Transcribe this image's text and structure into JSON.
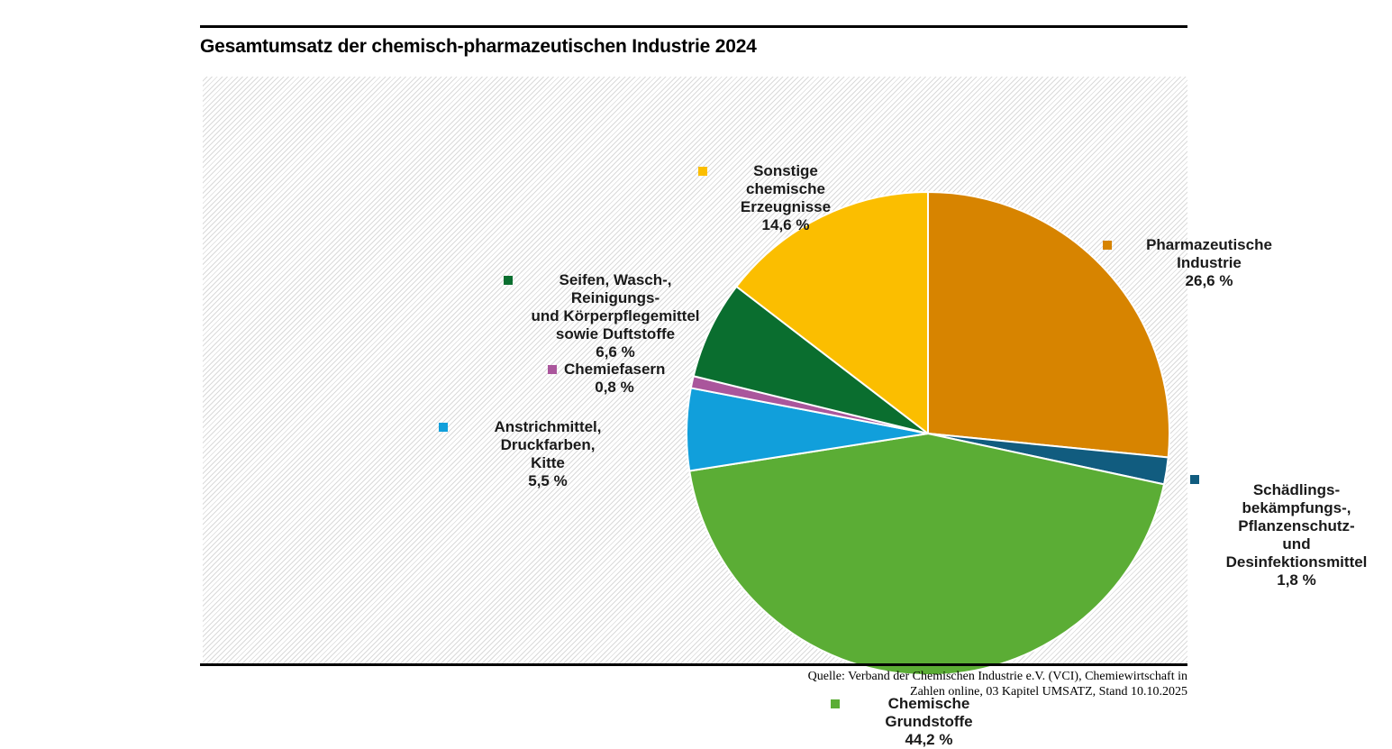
{
  "title": "Gesamtumsatz der chemisch-pharmazeutischen Industrie 2024",
  "chart_data": {
    "type": "pie",
    "title": "Gesamtumsatz der chemisch-pharmazeutischen Industrie 2024",
    "unit": "%",
    "start_angle": "12-o'clock",
    "direction": "clockwise",
    "legend_position": "labels around pie with color swatches",
    "background": "white with light gray diagonal hatching",
    "slices": [
      {
        "label": "Pharmazeutische Industrie",
        "value": 26.6,
        "display_value": "26,6 %",
        "color": "#D78400",
        "annotation": "Pharmazeutische Industrie\n26,6 %"
      },
      {
        "label": "Schädlingsbekämpfungs-, Pflanzenschutz- und Desinfektionsmittel",
        "value": 1.8,
        "display_value": "1,8 %",
        "color": "#115C7F",
        "annotation": "Schädlings-\nbekämpfungs-,\nPflanzenschutz-\nund Desinfektionsmittel\n1,8 %"
      },
      {
        "label": "Chemische Grundstoffe",
        "value": 44.2,
        "display_value": "44,2 %",
        "color": "#5BAD35",
        "annotation": "Chemische Grundstoffe\n44,2 %"
      },
      {
        "label": "Anstrichmittel, Druckfarben, Kitte",
        "value": 5.5,
        "display_value": "5,5 %",
        "color": "#119FDB",
        "annotation": "Anstrichmittel, Druckfarben,\nKitte\n5,5 %"
      },
      {
        "label": "Chemiefasern",
        "value": 0.8,
        "display_value": "0,8 %",
        "color": "#AA569C",
        "annotation": "Chemiefasern\n0,8 %"
      },
      {
        "label": "Seifen, Wasch-, Reinigungs- und Körperpflegemittel sowie Duftstoffe",
        "value": 6.6,
        "display_value": "6,6 %",
        "color": "#0A6E2F",
        "annotation": "Seifen, Wasch-, Reinigungs-\nund Körperpflegemittel\nsowie Duftstoffe\n6,6 %"
      },
      {
        "label": "Sonstige chemische Erzeugnisse",
        "value": 14.6,
        "display_value": "14,6 %",
        "color": "#FBBE00",
        "annotation": "Sonstige chemische\nErzeugnisse\n14,6 %"
      }
    ]
  },
  "source": {
    "line1": "Quelle: Verband der Chemischen Industrie e.V. (VCI), Chemiewirtschaft in",
    "line2": "Zahlen online, 03 Kapitel UMSATZ, Stand 10.10.2025"
  }
}
